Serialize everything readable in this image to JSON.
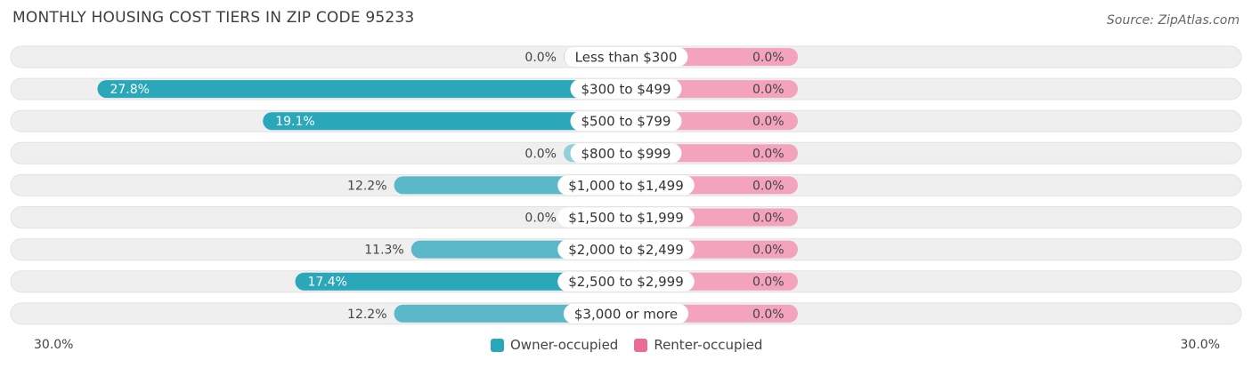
{
  "header": {
    "title": "MONTHLY HOUSING COST TIERS IN ZIP CODE 95233",
    "source": "Source: ZipAtlas.com"
  },
  "legend": {
    "owner_label": "Owner-occupied",
    "renter_label": "Renter-occupied"
  },
  "axis": {
    "left_label": "30.0%",
    "right_label": "30.0%"
  },
  "colors": {
    "owner": "#5bb8c8",
    "owner_dark": "#2aa8ba",
    "owner_light": "#8fd0dc",
    "renter": "#f4a3bd",
    "renter_swatch": "#ea6b95",
    "row_bg": "#efefef"
  },
  "chart_data": {
    "type": "bar",
    "orientation": "horizontal-diverging",
    "title": "MONTHLY HOUSING COST TIERS IN ZIP CODE 95233",
    "categories": [
      "Less than $300",
      "$300 to $499",
      "$500 to $799",
      "$800 to $999",
      "$1,000 to $1,499",
      "$1,500 to $1,999",
      "$2,000 to $2,499",
      "$2,500 to $2,999",
      "$3,000 or more"
    ],
    "series": [
      {
        "name": "Owner-occupied",
        "values": [
          0.0,
          27.8,
          19.1,
          0.0,
          12.2,
          0.0,
          11.3,
          17.4,
          12.2
        ]
      },
      {
        "name": "Renter-occupied",
        "values": [
          0.0,
          0.0,
          0.0,
          0.0,
          0.0,
          0.0,
          0.0,
          0.0,
          0.0
        ]
      }
    ],
    "value_labels": {
      "owner": [
        "0.0%",
        "27.8%",
        "19.1%",
        "0.0%",
        "12.2%",
        "0.0%",
        "11.3%",
        "17.4%",
        "12.2%"
      ],
      "renter": [
        "0.0%",
        "0.0%",
        "0.0%",
        "0.0%",
        "0.0%",
        "0.0%",
        "0.0%",
        "0.0%",
        "0.0%"
      ]
    },
    "xlim": [
      -30,
      30
    ],
    "legend_position": "bottom-center"
  }
}
